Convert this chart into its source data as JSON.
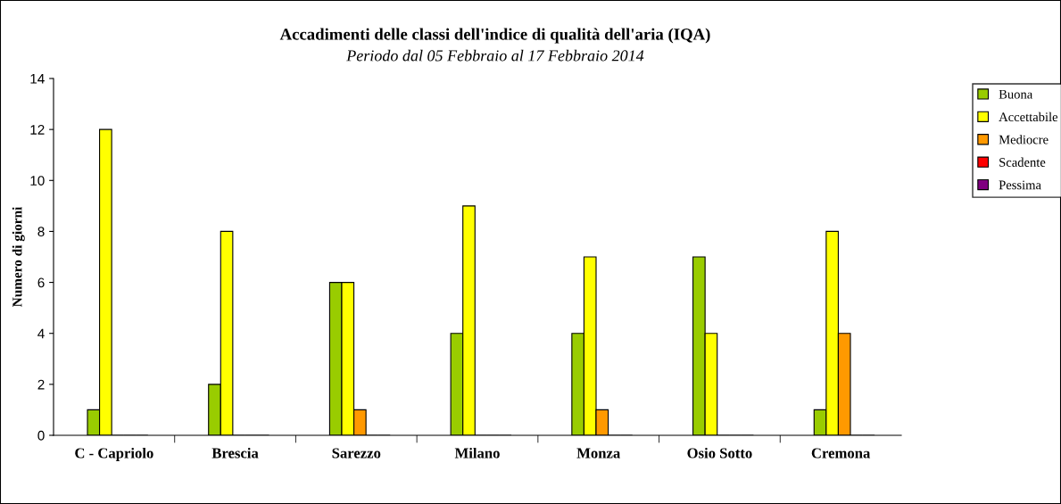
{
  "chart_data": {
    "type": "bar",
    "title": "Accadimenti delle classi dell'indice di qualità dell'aria (IQA)",
    "subtitle": "Periodo dal 05 Febbraio al 17 Febbraio 2014",
    "ylabel": "Numero di giorni",
    "categories": [
      "C - Capriolo",
      "Brescia",
      "Sarezzo",
      "Milano",
      "Monza",
      "Osio Sotto",
      "Cremona"
    ],
    "series": [
      {
        "name": "Buona",
        "color": "#99cc00",
        "values": [
          1,
          2,
          6,
          4,
          4,
          7,
          1
        ]
      },
      {
        "name": "Accettabile",
        "color": "#ffff00",
        "values": [
          12,
          8,
          6,
          9,
          7,
          4,
          8
        ]
      },
      {
        "name": "Mediocre",
        "color": "#ff9900",
        "values": [
          0,
          0,
          1,
          0,
          1,
          0,
          4
        ]
      },
      {
        "name": "Scadente",
        "color": "#ff0000",
        "values": [
          0,
          0,
          0,
          0,
          0,
          0,
          0
        ]
      },
      {
        "name": "Pessima",
        "color": "#800080",
        "values": [
          0,
          0,
          0,
          0,
          0,
          0,
          0
        ]
      }
    ],
    "ylim": [
      0,
      14
    ],
    "yticks": [
      0,
      2,
      4,
      6,
      8,
      10,
      12,
      14
    ],
    "grid": false,
    "legend": "top right"
  }
}
